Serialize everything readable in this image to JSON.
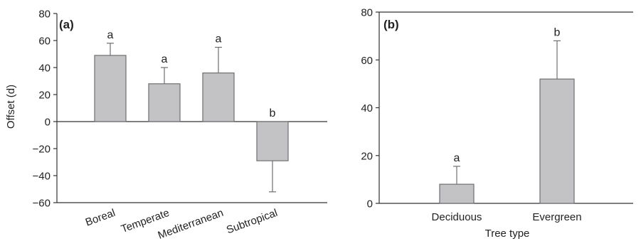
{
  "chart_data": [
    {
      "type": "bar",
      "panel_label": "(a)",
      "categories": [
        "Boreal",
        "Temperate",
        "Mediterranean",
        "Subtropical"
      ],
      "values": [
        49,
        28,
        36,
        -29
      ],
      "error_upper": [
        58,
        40,
        55,
        -52
      ],
      "significance_letters": [
        "a",
        "a",
        "a",
        "b"
      ],
      "ylabel": "Offset (d)",
      "xlabel": "",
      "ylim": [
        -60,
        80
      ],
      "yticks": [
        -60,
        -40,
        -20,
        0,
        20,
        40,
        60,
        80
      ],
      "ytick_labels": [
        "−60",
        "−40",
        "−20",
        "0",
        "20",
        "40",
        "60",
        "80"
      ],
      "grid": false,
      "bar_color": "#c3c3c6",
      "edge_color": "#6f6f72"
    },
    {
      "type": "bar",
      "panel_label": "(b)",
      "categories": [
        "Deciduous",
        "Evergreen"
      ],
      "values": [
        8,
        52
      ],
      "error_upper": [
        15.5,
        68
      ],
      "significance_letters": [
        "a",
        "b"
      ],
      "ylabel": "",
      "xlabel": "Tree type",
      "ylim": [
        0,
        80
      ],
      "yticks": [
        0,
        20,
        40,
        60,
        80
      ],
      "ytick_labels": [
        "0",
        "20",
        "40",
        "60",
        "80"
      ],
      "grid": false,
      "bar_color": "#c3c3c6",
      "edge_color": "#6f6f72"
    }
  ]
}
